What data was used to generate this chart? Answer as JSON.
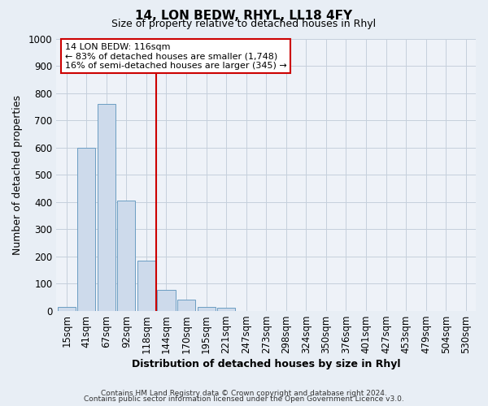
{
  "title": "14, LON BEDW, RHYL, LL18 4FY",
  "subtitle": "Size of property relative to detached houses in Rhyl",
  "xlabel": "Distribution of detached houses by size in Rhyl",
  "ylabel": "Number of detached properties",
  "bar_labels": [
    "15sqm",
    "41sqm",
    "67sqm",
    "92sqm",
    "118sqm",
    "144sqm",
    "170sqm",
    "195sqm",
    "221sqm",
    "247sqm",
    "273sqm",
    "298sqm",
    "324sqm",
    "350sqm",
    "376sqm",
    "401sqm",
    "427sqm",
    "453sqm",
    "479sqm",
    "504sqm",
    "530sqm"
  ],
  "bar_values": [
    15,
    600,
    760,
    405,
    185,
    75,
    40,
    15,
    10,
    0,
    0,
    0,
    0,
    0,
    0,
    0,
    0,
    0,
    0,
    0,
    0
  ],
  "bar_color": "#cddaeb",
  "bar_edge_color": "#6b9dc2",
  "vline_index": 4,
  "vline_color": "#cc0000",
  "annotation_title": "14 LON BEDW: 116sqm",
  "annotation_line1": "← 83% of detached houses are smaller (1,748)",
  "annotation_line2": "16% of semi-detached houses are larger (345) →",
  "annotation_box_facecolor": "#ffffff",
  "annotation_box_edgecolor": "#cc0000",
  "ylim": [
    0,
    1000
  ],
  "yticks": [
    0,
    100,
    200,
    300,
    400,
    500,
    600,
    700,
    800,
    900,
    1000
  ],
  "footer1": "Contains HM Land Registry data © Crown copyright and database right 2024.",
  "footer2": "Contains public sector information licensed under the Open Government Licence v3.0.",
  "bg_color": "#e8eef5",
  "plot_bg_color": "#eef2f8",
  "grid_color": "#c5cfdc"
}
